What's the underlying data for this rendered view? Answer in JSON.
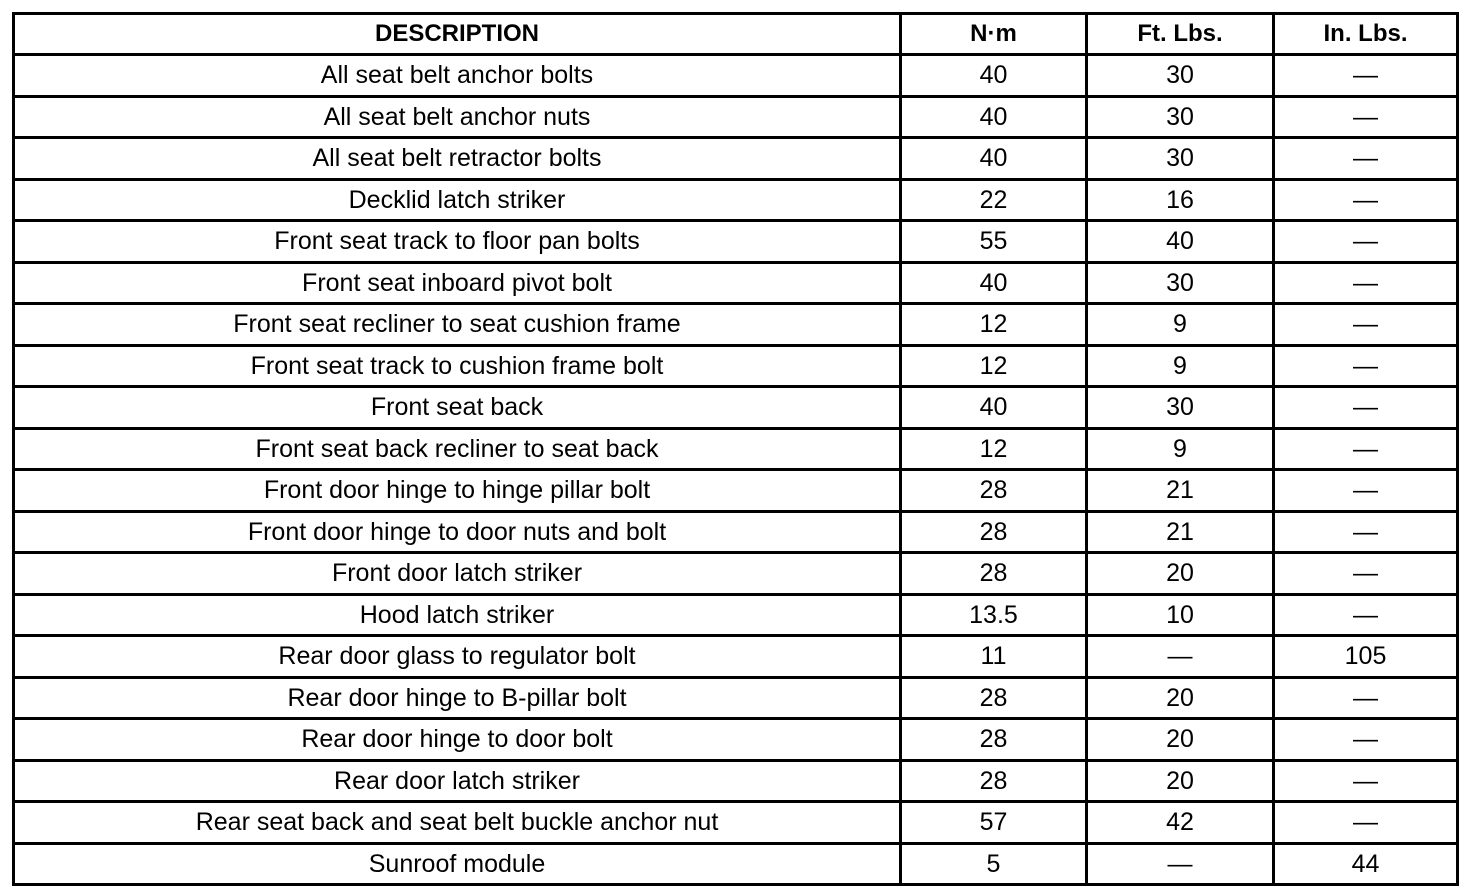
{
  "table": {
    "headers": [
      "DESCRIPTION",
      "N·m",
      "Ft. Lbs.",
      "In. Lbs."
    ],
    "rows": [
      [
        "All seat belt anchor bolts",
        "40",
        "30",
        "—"
      ],
      [
        "All seat belt anchor nuts",
        "40",
        "30",
        "—"
      ],
      [
        "All seat belt retractor bolts",
        "40",
        "30",
        "—"
      ],
      [
        "Decklid latch striker",
        "22",
        "16",
        "—"
      ],
      [
        "Front seat track to floor pan bolts",
        "55",
        "40",
        "—"
      ],
      [
        "Front seat inboard pivot bolt",
        "40",
        "30",
        "—"
      ],
      [
        "Front seat recliner to seat cushion frame",
        "12",
        "9",
        "—"
      ],
      [
        "Front seat track to cushion frame bolt",
        "12",
        "9",
        "—"
      ],
      [
        "Front seat back",
        "40",
        "30",
        "—"
      ],
      [
        "Front seat back recliner to seat back",
        "12",
        "9",
        "—"
      ],
      [
        "Front door hinge to hinge pillar bolt",
        "28",
        "21",
        "—"
      ],
      [
        "Front door hinge to door nuts and bolt",
        "28",
        "21",
        "—"
      ],
      [
        "Front door latch striker",
        "28",
        "20",
        "—"
      ],
      [
        "Hood latch striker",
        "13.5",
        "10",
        "—"
      ],
      [
        "Rear door glass to regulator bolt",
        "11",
        "—",
        "105"
      ],
      [
        "Rear door hinge to B-pillar bolt",
        "28",
        "20",
        "—"
      ],
      [
        "Rear door hinge to door bolt",
        "28",
        "20",
        "—"
      ],
      [
        "Rear door latch striker",
        "28",
        "20",
        "—"
      ],
      [
        "Rear seat back and seat belt buckle anchor nut",
        "57",
        "42",
        "—"
      ],
      [
        "Sunroof module",
        "5",
        "—",
        "44"
      ]
    ]
  }
}
